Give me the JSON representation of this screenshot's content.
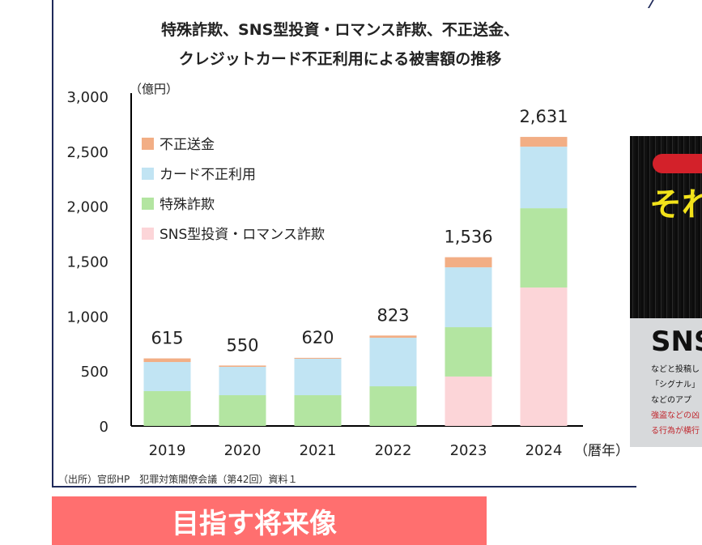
{
  "chart_data": {
    "type": "bar",
    "stacked": true,
    "title": [
      "特殊詐欺、SNS型投資・ロマンス詐欺、不正送金、",
      "クレジットカード不正利用による被害額の推移"
    ],
    "ylabel": "（億円）",
    "xlabel": "（暦年）",
    "ylim": [
      0,
      3000
    ],
    "yticks": [
      "0",
      "500",
      "1,000",
      "1,500",
      "2,000",
      "2,500",
      "3,000"
    ],
    "ytick_values": [
      0,
      500,
      1000,
      1500,
      2000,
      2500,
      3000
    ],
    "grid": false,
    "legend_position": "top-left",
    "categories": [
      "2019",
      "2020",
      "2021",
      "2022",
      "2023",
      "2024"
    ],
    "series": [
      {
        "name": "SNS型投資・ロマンス詐欺",
        "color": "#fcd5d8",
        "values": [
          0,
          0,
          0,
          0,
          450,
          1260
        ]
      },
      {
        "name": "特殊詐欺",
        "color": "#b3e5a1",
        "values": [
          317,
          280,
          280,
          361,
          449,
          722
        ]
      },
      {
        "name": "カード不正利用",
        "color": "#c1e4f3",
        "values": [
          265,
          258,
          332,
          442,
          545,
          560
        ]
      },
      {
        "name": "不正送金",
        "color": "#f2ae85",
        "values": [
          33,
          12,
          8,
          20,
          92,
          89
        ]
      }
    ],
    "totals": [
      "615",
      "550",
      "620",
      "823",
      "1,536",
      "2,631"
    ]
  },
  "source": "（出所）官邸HP　犯罪対策閣僚会議（第42回）資料１",
  "banner": {
    "label": "目指す将来像",
    "color": "#ff6f6f"
  },
  "side_image": {
    "headline": "それ",
    "headline2": "「",
    "subhead": "SNS",
    "lines": [
      "などと投稿し",
      "「シグナル」",
      "などのアプ",
      "強盗などの凶",
      "る行為が横行"
    ]
  }
}
